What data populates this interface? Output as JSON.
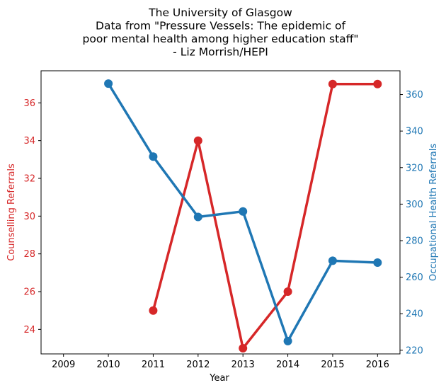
{
  "chart_data": {
    "type": "line",
    "title_lines": [
      "The University of Glasgow",
      "Data from \"Pressure Vessels: The epidemic of",
      "poor mental health among higher education staff\"",
      "- Liz Morrish/HEPI"
    ],
    "xlabel": "Year",
    "x": [
      2009,
      2010,
      2011,
      2012,
      2013,
      2014,
      2015,
      2016
    ],
    "xlim": [
      2008.5,
      2016.5
    ],
    "grid": false,
    "series": [
      {
        "name": "Counselling Referrals",
        "axis": "left",
        "color": "#d62728",
        "ylabel": "Counselling Referrals",
        "ylim": [
          22.7,
          37.7
        ],
        "yticks": [
          24,
          26,
          28,
          30,
          32,
          34,
          36
        ],
        "points": [
          [
            2011,
            25
          ],
          [
            2012,
            34
          ],
          [
            2013,
            23
          ],
          [
            2014,
            26
          ],
          [
            2015,
            37
          ],
          [
            2016,
            37
          ]
        ]
      },
      {
        "name": "Occupational Health Referrals",
        "axis": "right",
        "color": "#1f77b4",
        "ylabel": "Occupational Health Referrals",
        "ylim": [
          218,
          373
        ],
        "yticks": [
          220,
          240,
          260,
          280,
          300,
          320,
          340,
          360
        ],
        "points": [
          [
            2010,
            366
          ],
          [
            2011,
            326
          ],
          [
            2012,
            293
          ],
          [
            2013,
            296
          ],
          [
            2014,
            225
          ],
          [
            2015,
            269
          ],
          [
            2016,
            268
          ]
        ]
      }
    ]
  }
}
